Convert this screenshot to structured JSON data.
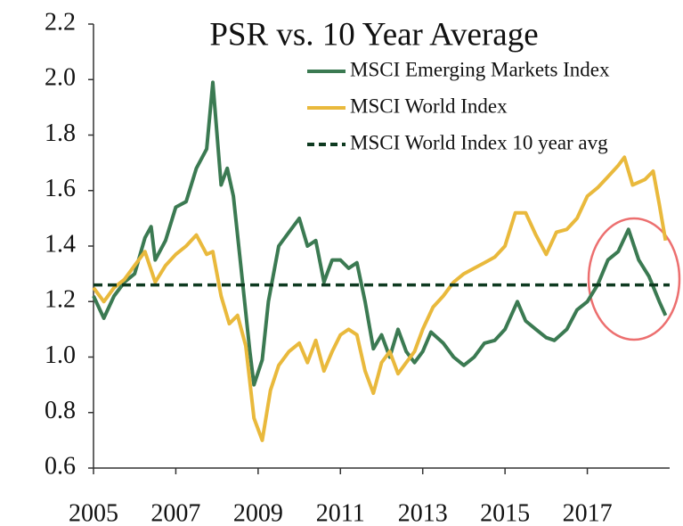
{
  "chart_data": {
    "type": "line",
    "title": "PSR vs. 10 Year Average",
    "xlim": [
      2005,
      2019
    ],
    "xticks": [
      2005,
      2007,
      2009,
      2011,
      2013,
      2015,
      2017
    ],
    "ylim": [
      0.6,
      2.2
    ],
    "yticks": [
      0.6,
      0.8,
      {
        "value": 1.0,
        "label": "1.0"
      },
      1.2,
      1.4,
      1.6,
      1.8,
      {
        "value": 2.0,
        "label": "2.0"
      },
      2.2
    ],
    "legend": "top-right",
    "series": [
      {
        "name": "MSCI Emerging Markets Index",
        "color": "#3b7a52",
        "dashed": false,
        "x": [
          2005.0,
          2005.25,
          2005.5,
          2005.75,
          2006.0,
          2006.25,
          2006.4,
          2006.5,
          2006.75,
          2007.0,
          2007.25,
          2007.5,
          2007.75,
          2007.9,
          2008.1,
          2008.25,
          2008.4,
          2008.6,
          2008.8,
          2008.9,
          2009.1,
          2009.25,
          2009.5,
          2009.75,
          2010.0,
          2010.2,
          2010.4,
          2010.6,
          2010.8,
          2011.0,
          2011.2,
          2011.4,
          2011.6,
          2011.8,
          2012.0,
          2012.2,
          2012.4,
          2012.6,
          2012.8,
          2013.0,
          2013.2,
          2013.5,
          2013.75,
          2014.0,
          2014.25,
          2014.5,
          2014.75,
          2015.0,
          2015.3,
          2015.5,
          2015.75,
          2016.0,
          2016.2,
          2016.5,
          2016.75,
          2017.0,
          2017.25,
          2017.5,
          2017.75,
          2018.0,
          2018.25,
          2018.5,
          2018.75,
          2018.9
        ],
        "values": [
          1.22,
          1.14,
          1.22,
          1.27,
          1.3,
          1.43,
          1.47,
          1.35,
          1.42,
          1.54,
          1.56,
          1.68,
          1.75,
          1.99,
          1.62,
          1.68,
          1.58,
          1.3,
          1.02,
          0.9,
          0.99,
          1.2,
          1.4,
          1.45,
          1.5,
          1.4,
          1.42,
          1.27,
          1.35,
          1.35,
          1.32,
          1.34,
          1.2,
          1.03,
          1.08,
          1.0,
          1.1,
          1.02,
          0.98,
          1.02,
          1.09,
          1.05,
          1.0,
          0.97,
          1.0,
          1.05,
          1.06,
          1.1,
          1.2,
          1.13,
          1.1,
          1.07,
          1.06,
          1.1,
          1.17,
          1.2,
          1.26,
          1.35,
          1.38,
          1.46,
          1.35,
          1.29,
          1.2,
          1.15
        ]
      },
      {
        "name": "MSCI World Index",
        "color": "#e9b93c",
        "dashed": false,
        "x": [
          2005.0,
          2005.25,
          2005.5,
          2005.75,
          2006.0,
          2006.25,
          2006.5,
          2006.75,
          2007.0,
          2007.25,
          2007.5,
          2007.75,
          2007.9,
          2008.1,
          2008.3,
          2008.5,
          2008.7,
          2008.9,
          2009.1,
          2009.3,
          2009.5,
          2009.75,
          2010.0,
          2010.2,
          2010.4,
          2010.6,
          2010.8,
          2011.0,
          2011.2,
          2011.4,
          2011.6,
          2011.8,
          2012.0,
          2012.2,
          2012.4,
          2012.6,
          2012.8,
          2013.0,
          2013.25,
          2013.5,
          2013.75,
          2014.0,
          2014.25,
          2014.5,
          2014.75,
          2015.0,
          2015.25,
          2015.5,
          2015.75,
          2016.0,
          2016.25,
          2016.5,
          2016.75,
          2017.0,
          2017.25,
          2017.5,
          2017.75,
          2017.9,
          2018.1,
          2018.4,
          2018.6,
          2018.75,
          2018.9
        ],
        "values": [
          1.25,
          1.2,
          1.25,
          1.28,
          1.33,
          1.38,
          1.27,
          1.33,
          1.37,
          1.4,
          1.44,
          1.37,
          1.38,
          1.22,
          1.12,
          1.15,
          1.04,
          0.78,
          0.7,
          0.88,
          0.97,
          1.02,
          1.05,
          0.98,
          1.06,
          0.95,
          1.02,
          1.08,
          1.1,
          1.08,
          0.95,
          0.87,
          0.98,
          1.02,
          0.94,
          0.98,
          1.02,
          1.1,
          1.18,
          1.22,
          1.27,
          1.3,
          1.32,
          1.34,
          1.36,
          1.4,
          1.52,
          1.52,
          1.44,
          1.37,
          1.45,
          1.46,
          1.5,
          1.58,
          1.61,
          1.65,
          1.69,
          1.72,
          1.62,
          1.64,
          1.67,
          1.55,
          1.42
        ]
      },
      {
        "name": "MSCI World Index 10 year avg",
        "color": "#0e3a20",
        "dashed": true,
        "x": [
          2005,
          2019
        ],
        "values": [
          1.26,
          1.26
        ]
      }
    ]
  }
}
